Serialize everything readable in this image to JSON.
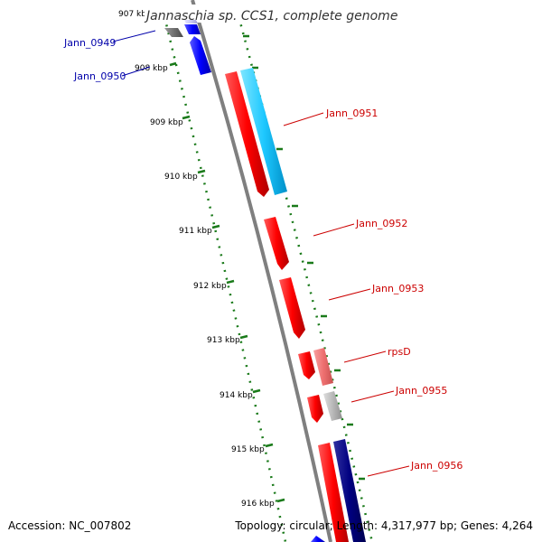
{
  "title": "Jannaschia sp. CCS1, complete genome",
  "footer": {
    "accession": "Accession: NC_007802",
    "topology": "Topology: circular; Length: 4,317,977 bp; Genes: 4,264"
  },
  "kbp_ticks": [
    "907 kbp",
    "908 kbp",
    "909 kbp",
    "910 kbp",
    "911 kbp",
    "912 kbp",
    "913 kbp",
    "914 kbp",
    "915 kbp",
    "916 kbp"
  ],
  "gene_labels": [
    "Jann_0949",
    "Jann_0950",
    "Jann_0951",
    "Jann_0952",
    "Jann_0953",
    "rpsD",
    "Jann_0955",
    "Jann_0956"
  ],
  "colors": {
    "backbone": "#808080",
    "scale_dots": "#1a7a1a",
    "minus_strand_label": "#0000aa",
    "plus_strand_label": "#cc0000",
    "red_gene": "#ff0000",
    "cyan_gene": "#1ec8ff",
    "blue_gene": "#0000ff",
    "navy_gene": "#000080",
    "pink_gene": "#ee7070",
    "gray_gene": "#b8b8b8"
  },
  "icons": [
    "gene-arrow"
  ]
}
